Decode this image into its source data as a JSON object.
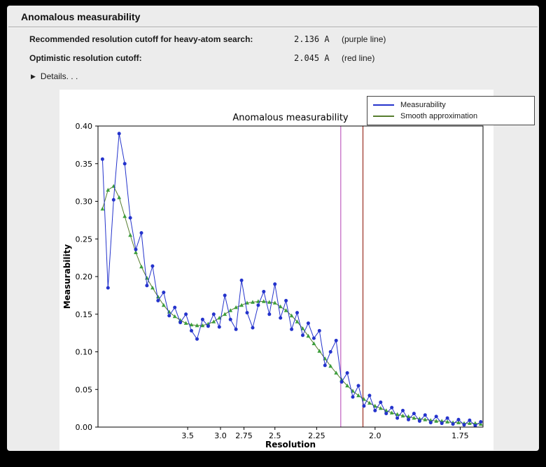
{
  "window": {
    "title": "Anomalous measurability"
  },
  "summary": {
    "rows": [
      {
        "label": "Recommended resolution cutoff for heavy-atom search:",
        "value": "2.136 A",
        "note": "(purple line)"
      },
      {
        "label": "Optimistic resolution cutoff:",
        "value": "2.045 A",
        "note": "(red line)"
      }
    ],
    "details_label": "Details. . .",
    "disclosure_icon": "▶"
  },
  "legend": {
    "entries": [
      {
        "label": "Measurability",
        "color": "#2433cc"
      },
      {
        "label": "Smooth approximation",
        "color": "#567d2e"
      }
    ]
  },
  "chart_data": {
    "type": "line",
    "title": "Anomalous measurability",
    "xlabel": "Resolution",
    "ylabel": "Measurability",
    "ylim": [
      0,
      0.4
    ],
    "yticks": [
      "0.00",
      "0.05",
      "0.10",
      "0.15",
      "0.20",
      "0.25",
      "0.30",
      "0.35",
      "0.40"
    ],
    "grid": false,
    "legend_position": "top-right-outside",
    "x_axis": {
      "scale": "1/d^2",
      "range_s2": [
        0.001,
        0.347
      ],
      "ticks": [
        {
          "label": "3.5",
          "s2": 0.0816
        },
        {
          "label": "3.0",
          "s2": 0.1111
        },
        {
          "label": "2.75",
          "s2": 0.1322
        },
        {
          "label": "2.5",
          "s2": 0.16
        },
        {
          "label": "2.25",
          "s2": 0.1975
        },
        {
          "label": "2.0",
          "s2": 0.25
        },
        {
          "label": "1.75",
          "s2": 0.3265
        }
      ]
    },
    "x_s2": [
      0.005,
      0.01,
      0.015,
      0.02,
      0.025,
      0.03,
      0.035,
      0.04,
      0.045,
      0.05,
      0.055,
      0.06,
      0.065,
      0.07,
      0.075,
      0.08,
      0.085,
      0.09,
      0.095,
      0.1,
      0.105,
      0.11,
      0.115,
      0.12,
      0.125,
      0.13,
      0.135,
      0.14,
      0.145,
      0.15,
      0.155,
      0.16,
      0.165,
      0.17,
      0.175,
      0.18,
      0.185,
      0.19,
      0.195,
      0.2,
      0.205,
      0.21,
      0.215,
      0.22,
      0.225,
      0.23,
      0.235,
      0.24,
      0.245,
      0.25,
      0.255,
      0.26,
      0.265,
      0.27,
      0.275,
      0.28,
      0.285,
      0.29,
      0.295,
      0.3,
      0.305,
      0.31,
      0.315,
      0.32,
      0.325,
      0.33,
      0.335,
      0.34,
      0.345
    ],
    "series": [
      {
        "name": "Measurability",
        "color": "#2433cc",
        "marker": "circle",
        "values": [
          0.356,
          0.185,
          0.302,
          0.39,
          0.35,
          0.278,
          0.236,
          0.258,
          0.188,
          0.214,
          0.168,
          0.179,
          0.148,
          0.159,
          0.139,
          0.15,
          0.128,
          0.117,
          0.143,
          0.134,
          0.15,
          0.133,
          0.175,
          0.143,
          0.13,
          0.195,
          0.152,
          0.132,
          0.162,
          0.18,
          0.15,
          0.19,
          0.145,
          0.168,
          0.13,
          0.152,
          0.122,
          0.138,
          0.118,
          0.128,
          0.082,
          0.1,
          0.115,
          0.06,
          0.072,
          0.04,
          0.055,
          0.028,
          0.042,
          0.022,
          0.033,
          0.018,
          0.026,
          0.012,
          0.022,
          0.01,
          0.018,
          0.008,
          0.016,
          0.006,
          0.014,
          0.005,
          0.012,
          0.004,
          0.01,
          0.003,
          0.009,
          0.002,
          0.007
        ]
      },
      {
        "name": "Smooth approximation",
        "color": "#567d2e",
        "marker": "triangle",
        "marker_color": "#3c9e3c",
        "values": [
          0.29,
          0.315,
          0.32,
          0.305,
          0.28,
          0.255,
          0.232,
          0.213,
          0.198,
          0.185,
          0.173,
          0.162,
          0.153,
          0.147,
          0.142,
          0.138,
          0.136,
          0.135,
          0.135,
          0.137,
          0.14,
          0.145,
          0.15,
          0.155,
          0.159,
          0.162,
          0.165,
          0.166,
          0.167,
          0.167,
          0.166,
          0.165,
          0.16,
          0.155,
          0.148,
          0.14,
          0.131,
          0.121,
          0.111,
          0.101,
          0.091,
          0.081,
          0.072,
          0.063,
          0.055,
          0.048,
          0.042,
          0.037,
          0.032,
          0.028,
          0.025,
          0.022,
          0.019,
          0.017,
          0.015,
          0.014,
          0.012,
          0.011,
          0.01,
          0.009,
          0.008,
          0.008,
          0.007,
          0.006,
          0.006,
          0.005,
          0.005,
          0.005,
          0.004
        ]
      }
    ],
    "vlines": [
      {
        "name": "purple-cutoff-line",
        "s2": 0.2192,
        "d": "2.136",
        "color": "#bf5fbf"
      },
      {
        "name": "red-cutoff-line",
        "s2": 0.2391,
        "d": "2.045",
        "color": "#992e22"
      }
    ]
  }
}
